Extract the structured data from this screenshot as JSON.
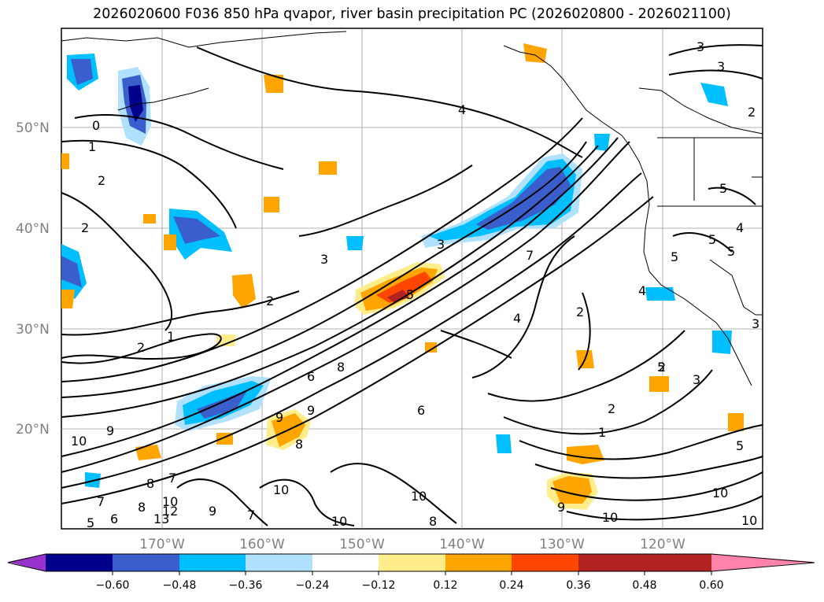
{
  "title": "2026020600 F036 850 hPa qvapor, river basin precipitation PC (2026020800 - 2026021100)",
  "axes": {
    "lat_labels": [
      "50°N",
      "40°N",
      "30°N",
      "20°N"
    ],
    "lon_labels": [
      "170°W",
      "160°W",
      "150°W",
      "140°W",
      "130°W",
      "120°W"
    ],
    "tick_color": "#808080"
  },
  "contour_labels": [
    {
      "text": "0"
    },
    {
      "text": "1"
    },
    {
      "text": "2"
    },
    {
      "text": "2"
    },
    {
      "text": "4"
    },
    {
      "text": "3"
    },
    {
      "text": "3"
    },
    {
      "text": "2"
    },
    {
      "text": "5"
    },
    {
      "text": "5"
    },
    {
      "text": "4"
    },
    {
      "text": "5"
    },
    {
      "text": "5"
    },
    {
      "text": "3"
    },
    {
      "text": "3"
    },
    {
      "text": "2"
    },
    {
      "text": "1"
    },
    {
      "text": "2"
    },
    {
      "text": "3"
    },
    {
      "text": "5"
    },
    {
      "text": "4"
    },
    {
      "text": "2"
    },
    {
      "text": "2"
    },
    {
      "text": "6"
    },
    {
      "text": "8"
    },
    {
      "text": "9"
    },
    {
      "text": "9"
    },
    {
      "text": "8"
    },
    {
      "text": "6"
    },
    {
      "text": "10"
    },
    {
      "text": "9"
    },
    {
      "text": "8"
    },
    {
      "text": "7"
    },
    {
      "text": "7"
    },
    {
      "text": "8"
    },
    {
      "text": "10"
    },
    {
      "text": "12"
    },
    {
      "text": "13"
    },
    {
      "text": "5"
    },
    {
      "text": "6"
    },
    {
      "text": "9"
    },
    {
      "text": "7"
    },
    {
      "text": "10"
    },
    {
      "text": "10"
    },
    {
      "text": "10"
    },
    {
      "text": "8"
    },
    {
      "text": "9"
    },
    {
      "text": "10"
    },
    {
      "text": "2"
    },
    {
      "text": "1"
    },
    {
      "text": "5"
    },
    {
      "text": "3"
    },
    {
      "text": "5"
    },
    {
      "text": "10"
    },
    {
      "text": "10"
    },
    {
      "text": "7"
    },
    {
      "text": "4"
    }
  ],
  "colorbar": {
    "colors": [
      "#9932CC",
      "#00008B",
      "#3A5FCD",
      "#00BFFF",
      "#B0E2FF",
      "#FFFFFF",
      "#FFEC8B",
      "#FFA500",
      "#FF4500",
      "#B22222",
      "#FF82AB"
    ],
    "tick_labels": [
      "−0.60",
      "−0.48",
      "−0.36",
      "−0.24",
      "−0.12",
      "0.12",
      "0.24",
      "0.36",
      "0.48",
      "0.60"
    ]
  }
}
